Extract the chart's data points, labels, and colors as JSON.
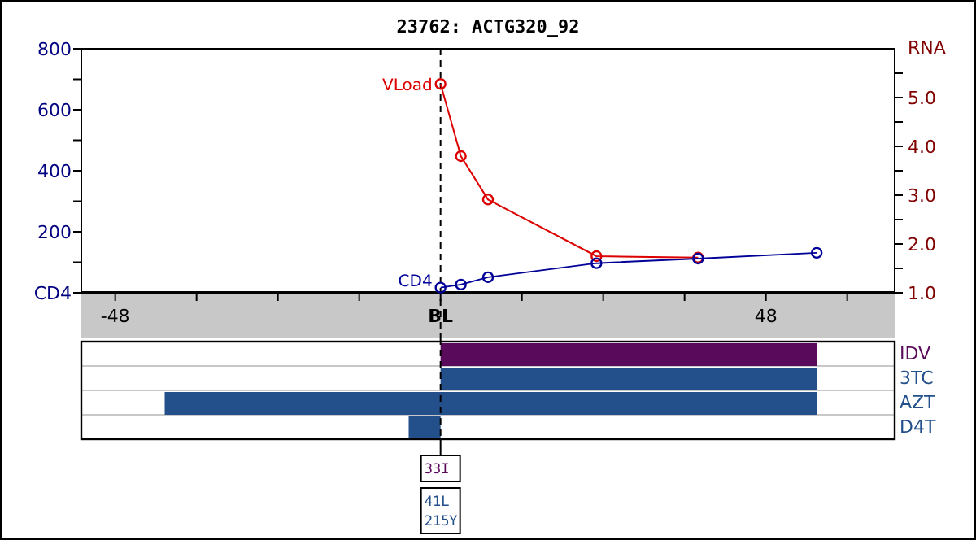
{
  "chart_data": [
    {
      "type": "line",
      "title": "23762: ACTG320_92",
      "y2label": "RNA",
      "xlim": [
        -53,
        67
      ],
      "xticks": [
        {
          "value": -48,
          "label": "-48"
        },
        {
          "value": -36,
          "label": null
        },
        {
          "value": -24,
          "label": null
        },
        {
          "value": -12,
          "label": null
        },
        {
          "value": 0,
          "label": "BL"
        },
        {
          "value": 12,
          "label": null
        },
        {
          "value": 24,
          "label": null
        },
        {
          "value": 36,
          "label": null
        },
        {
          "value": 48,
          "label": "48"
        },
        {
          "value": 60,
          "label": null
        }
      ],
      "ylim": [
        0,
        800
      ],
      "yticks": [
        {
          "value": 0,
          "label": "CD4"
        },
        {
          "value": 100,
          "label": null
        },
        200,
        {
          "value": 300,
          "label": null
        },
        400,
        {
          "value": 500,
          "label": null
        },
        600,
        {
          "value": 700,
          "label": null
        },
        800
      ],
      "y2lim": [
        1,
        6
      ],
      "y2ticks": [
        {
          "value": 1,
          "label": "1.0"
        },
        {
          "value": 1.5,
          "label": null
        },
        {
          "value": 2,
          "label": "2.0"
        },
        {
          "value": 2.5,
          "label": null
        },
        {
          "value": 3,
          "label": "3.0"
        },
        {
          "value": 3.5,
          "label": null
        },
        {
          "value": 4,
          "label": "4.0"
        },
        {
          "value": 4.5,
          "label": null
        },
        {
          "value": 5,
          "label": "5.0"
        },
        {
          "value": 5.5,
          "label": null
        }
      ],
      "marker": "circle",
      "grid": false,
      "ref_lines": [
        {
          "axis": "x",
          "value": 0,
          "line_style": "dashed"
        }
      ],
      "series": [
        {
          "name": "VLoad",
          "color": "#dd0000",
          "axis": "y2",
          "x": [
            0,
            3,
            7,
            23,
            38
          ],
          "values": [
            5.28,
            3.8,
            2.91,
            1.75,
            1.72
          ]
        },
        {
          "name": "CD4",
          "color": "#000099",
          "x": [
            0,
            3,
            7,
            23,
            38,
            55.5
          ],
          "values": [
            17,
            27,
            51,
            97,
            112,
            131
          ]
        }
      ]
    },
    {
      "type": "bar",
      "orientation": "horizontal",
      "categories": [
        "IDV",
        "3TC",
        "AZT",
        "D4T"
      ],
      "xlim": [
        -53,
        67
      ],
      "tick_labels": "y",
      "base": [
        0,
        0,
        -40.7,
        -4.7
      ],
      "values": [
        55.5,
        55.5,
        96.2,
        4.7
      ],
      "colors": [
        "#5a0a5a",
        "#23508a",
        "#23508a",
        "#23508a"
      ],
      "ref_lines": [
        {
          "axis": "x",
          "value": 0,
          "line_style": "dashed"
        }
      ],
      "annotations": [
        "33I",
        "41L\n215Y"
      ]
    }
  ]
}
